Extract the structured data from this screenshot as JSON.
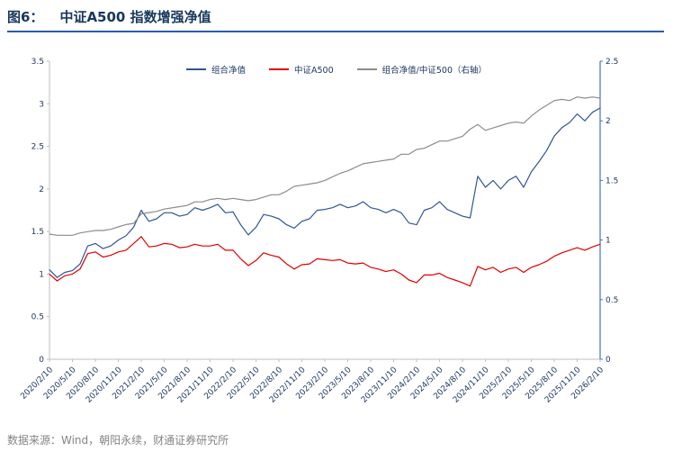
{
  "header": {
    "figure_label": "图6：",
    "title": "中证A500 指数增强净值"
  },
  "footer": {
    "source_text": "数据来源：Wind，朝阳永续，财通证券研究所"
  },
  "colors": {
    "title_text": "#17375e",
    "title_underline": "#2a5caa",
    "axis_label": "#1f3864",
    "axis_line": "#bfbfbf",
    "right_axis_line": "#4472c4",
    "footer_text": "#848484",
    "series_blue": "#2f5597",
    "series_red": "#e00000",
    "series_gray": "#8c8c8c"
  },
  "chart_data": {
    "type": "line",
    "title": "中证A500 指数增强净值",
    "grid": false,
    "legend_position": "top-center",
    "x_unit": "month",
    "x": [
      "2020/2",
      "2020/3",
      "2020/4",
      "2020/5",
      "2020/6",
      "2020/7",
      "2020/8",
      "2020/9",
      "2020/10",
      "2020/11",
      "2020/12",
      "2021/1",
      "2021/2",
      "2021/3",
      "2021/4",
      "2021/5",
      "2021/6",
      "2021/7",
      "2021/8",
      "2021/9",
      "2021/10",
      "2021/11",
      "2021/12",
      "2022/1",
      "2022/2",
      "2022/3",
      "2022/4",
      "2022/5",
      "2022/6",
      "2022/7",
      "2022/8",
      "2022/9",
      "2022/10",
      "2022/11",
      "2022/12",
      "2023/1",
      "2023/2",
      "2023/3",
      "2023/4",
      "2023/5",
      "2023/6",
      "2023/7",
      "2023/8",
      "2023/9",
      "2023/10",
      "2023/11",
      "2023/12",
      "2024/1",
      "2024/2",
      "2024/3",
      "2024/4",
      "2024/5",
      "2024/6",
      "2024/7",
      "2024/8",
      "2024/9",
      "2024/10",
      "2024/11",
      "2024/12",
      "2025/1",
      "2025/2",
      "2025/3",
      "2025/4",
      "2025/5",
      "2025/6",
      "2025/7",
      "2025/8",
      "2025/9",
      "2025/10",
      "2025/11",
      "2025/12",
      "2026/1",
      "2026/2"
    ],
    "x_tick_labels": [
      "2020/2/10",
      "2020/5/10",
      "2020/8/10",
      "2020/11/10",
      "2021/2/10",
      "2021/5/10",
      "2021/8/10",
      "2021/11/10",
      "2022/2/10",
      "2022/5/10",
      "2022/8/10",
      "2022/11/10",
      "2023/2/10",
      "2023/5/10",
      "2023/8/10",
      "2023/11/10",
      "2024/2/10",
      "2024/5/10",
      "2024/8/10",
      "2024/11/10",
      "2025/2/10",
      "2025/5/10",
      "2025/8/10",
      "2025/11/10",
      "2026/2/10"
    ],
    "x_tick_every": 3,
    "left_axis": {
      "min": 0,
      "max": 3.5,
      "ticks": [
        "0",
        "0.5",
        "1",
        "1.5",
        "2",
        "2.5",
        "3",
        "3.5"
      ]
    },
    "right_axis": {
      "min": 0,
      "max": 2.5,
      "ticks": [
        "0",
        "0.5",
        "1",
        "1.5",
        "2",
        "2.5"
      ]
    },
    "series": [
      {
        "name": "组合净值",
        "axis": "left",
        "color": "#2f5597",
        "values": [
          1.05,
          0.96,
          1.02,
          1.04,
          1.12,
          1.33,
          1.36,
          1.3,
          1.33,
          1.4,
          1.45,
          1.55,
          1.75,
          1.62,
          1.65,
          1.72,
          1.72,
          1.68,
          1.7,
          1.78,
          1.75,
          1.78,
          1.82,
          1.72,
          1.73,
          1.58,
          1.46,
          1.55,
          1.7,
          1.68,
          1.65,
          1.58,
          1.54,
          1.62,
          1.65,
          1.75,
          1.76,
          1.78,
          1.82,
          1.78,
          1.8,
          1.85,
          1.78,
          1.76,
          1.72,
          1.76,
          1.72,
          1.6,
          1.58,
          1.75,
          1.78,
          1.85,
          1.76,
          1.72,
          1.68,
          1.66,
          2.15,
          2.02,
          2.1,
          2.0,
          2.1,
          2.15,
          2.02,
          2.2,
          2.32,
          2.45,
          2.62,
          2.72,
          2.78,
          2.88,
          2.8,
          2.9,
          2.95
        ]
      },
      {
        "name": "中证A500",
        "axis": "left",
        "color": "#e00000",
        "values": [
          1.0,
          0.92,
          0.98,
          1.0,
          1.06,
          1.24,
          1.26,
          1.2,
          1.22,
          1.26,
          1.28,
          1.36,
          1.44,
          1.32,
          1.33,
          1.36,
          1.35,
          1.31,
          1.32,
          1.35,
          1.33,
          1.33,
          1.35,
          1.28,
          1.28,
          1.18,
          1.1,
          1.16,
          1.25,
          1.22,
          1.2,
          1.12,
          1.06,
          1.11,
          1.12,
          1.18,
          1.17,
          1.16,
          1.17,
          1.13,
          1.12,
          1.13,
          1.08,
          1.06,
          1.03,
          1.05,
          1.0,
          0.93,
          0.9,
          0.99,
          0.99,
          1.01,
          0.96,
          0.93,
          0.9,
          0.86,
          1.09,
          1.05,
          1.08,
          1.02,
          1.06,
          1.08,
          1.02,
          1.08,
          1.11,
          1.15,
          1.21,
          1.25,
          1.28,
          1.31,
          1.28,
          1.32,
          1.35
        ]
      },
      {
        "name": "组合净值/中证500（右轴）",
        "axis": "right",
        "color": "#8c8c8c",
        "values": [
          1.05,
          1.04,
          1.04,
          1.04,
          1.06,
          1.07,
          1.08,
          1.08,
          1.09,
          1.11,
          1.13,
          1.14,
          1.22,
          1.23,
          1.24,
          1.26,
          1.27,
          1.28,
          1.29,
          1.32,
          1.32,
          1.34,
          1.35,
          1.34,
          1.35,
          1.34,
          1.33,
          1.34,
          1.36,
          1.38,
          1.38,
          1.41,
          1.45,
          1.46,
          1.47,
          1.48,
          1.5,
          1.53,
          1.56,
          1.58,
          1.61,
          1.64,
          1.65,
          1.66,
          1.67,
          1.68,
          1.72,
          1.72,
          1.76,
          1.77,
          1.8,
          1.83,
          1.83,
          1.85,
          1.87,
          1.93,
          1.97,
          1.92,
          1.94,
          1.96,
          1.98,
          1.99,
          1.98,
          2.04,
          2.09,
          2.13,
          2.17,
          2.18,
          2.17,
          2.2,
          2.19,
          2.2,
          2.19
        ]
      }
    ]
  }
}
